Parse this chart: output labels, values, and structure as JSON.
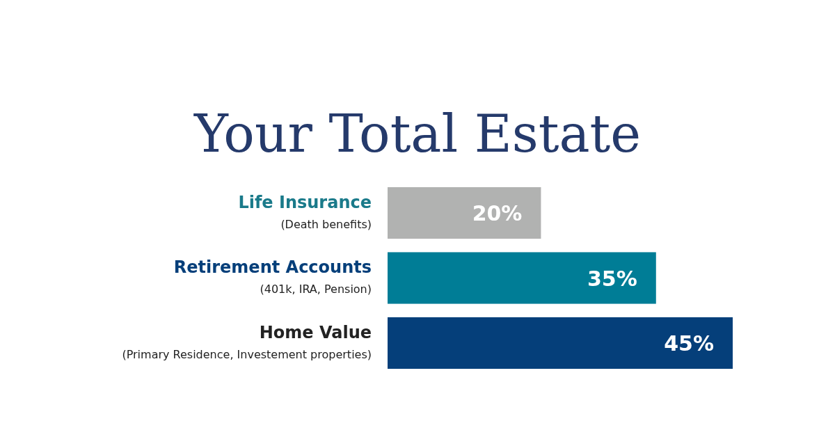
{
  "chart_data": {
    "type": "bar",
    "orientation": "horizontal",
    "title": "Your Total Estate",
    "categories": [
      "Life Insurance\n(Death benefits)",
      "Retirement Accounts\n(401k, IRA, Pension)",
      "Home Value\n(Primary Residence, Investement properties)"
    ],
    "values": [
      20,
      35,
      45
    ],
    "colors": [
      "#b1b2b1",
      "#007d96",
      "#053f7a"
    ],
    "value_labels": [
      "20%",
      "35%",
      "45%"
    ]
  }
}
